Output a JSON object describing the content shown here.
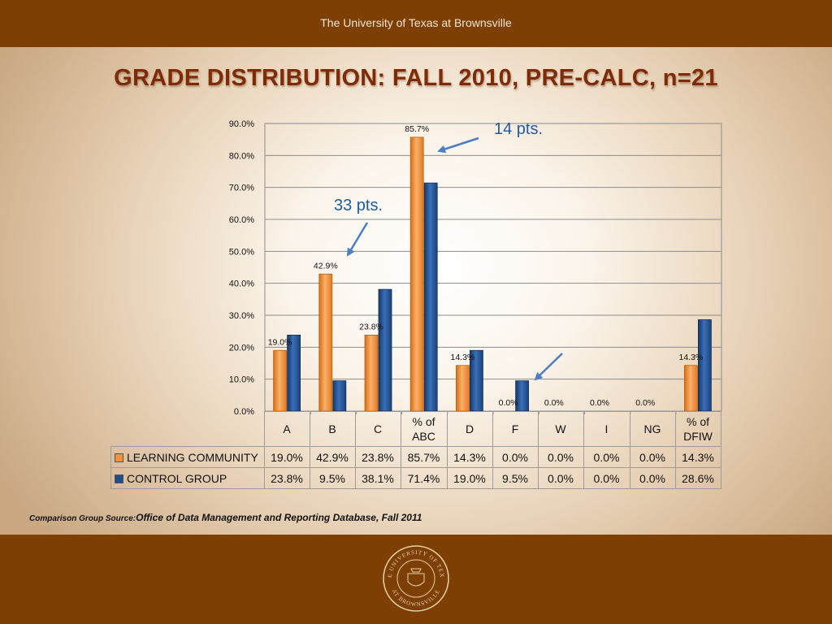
{
  "header": {
    "title": "The University of Texas at Brownsville"
  },
  "slide_title": "GRADE DISTRIBUTION: FALL 2010, PRE-CALC, n=21",
  "colors": {
    "learning": "#f2913b",
    "control": "#1f4e8c",
    "bar_brown": "#7e3f05",
    "callout": "#1f5a9c"
  },
  "chart_data": {
    "type": "bar",
    "title": "",
    "ylim": [
      0,
      90
    ],
    "yticks": [
      "0.0%",
      "10.0%",
      "20.0%",
      "30.0%",
      "40.0%",
      "50.0%",
      "60.0%",
      "70.0%",
      "80.0%",
      "90.0%"
    ],
    "categories": [
      "A",
      "B",
      "C",
      "% of ABC",
      "D",
      "F",
      "W",
      "I",
      "NG",
      "% of DFIW"
    ],
    "series": [
      {
        "name": "LEARNING COMMUNITY",
        "color": "#f2913b",
        "values": [
          19.0,
          42.9,
          23.8,
          85.7,
          14.3,
          0.0,
          0.0,
          0.0,
          0.0,
          14.3
        ],
        "labels": [
          "19.0%",
          "42.9%",
          "23.8%",
          "85.7%",
          "14.3%",
          "0.0%",
          "0.0%",
          "0.0%",
          "0.0%",
          "14.3%"
        ]
      },
      {
        "name": "CONTROL GROUP",
        "color": "#1f4e8c",
        "values": [
          23.8,
          9.5,
          38.1,
          71.4,
          19.0,
          9.5,
          0.0,
          0.0,
          0.0,
          28.6
        ],
        "labels": [
          "23.8%",
          "9.5%",
          "38.1%",
          "71.4%",
          "19.0%",
          "9.5%",
          "0.0%",
          "0.0%",
          "0.0%",
          "28.6%"
        ]
      }
    ],
    "annotations": [
      "14 pts.",
      "33 pts."
    ],
    "grid": true,
    "legend": "data table below chart"
  },
  "footnote": {
    "label": "Comparison Group Source:",
    "text": "Office of Data Management and Reporting Database, Fall 2011"
  },
  "seal": {
    "top_text": "THE UNIVERSITY OF TEXAS",
    "bottom_text": "AT BROWNSVILLE"
  }
}
